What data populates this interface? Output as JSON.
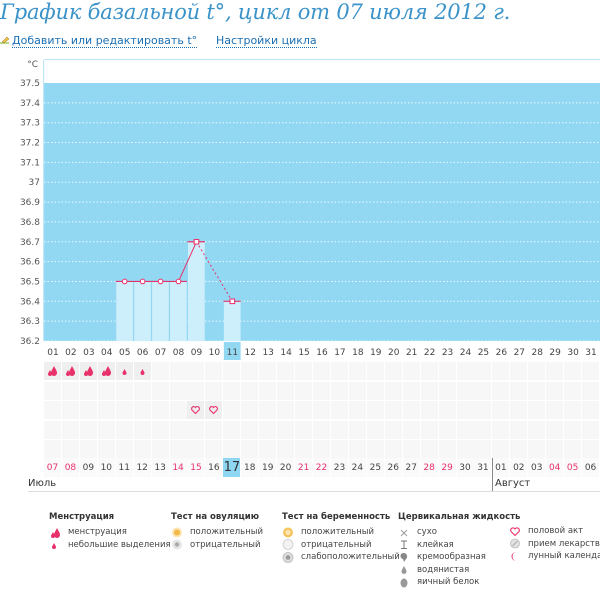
{
  "header": {
    "title": "График базальной t°, цикл от 07 июля 2012 г.",
    "links": [
      {
        "label": "Добавить или редактировать t°",
        "icon": "pencil-icon"
      },
      {
        "label": "Настройки цикла"
      }
    ]
  },
  "colors": {
    "plot_bg": "#92d8f3",
    "bar_fill": "#cdeefb",
    "line": "#e8306a",
    "title": "#3b93c9",
    "link": "#1a6fb3"
  },
  "chart_data": {
    "type": "bar",
    "title": "",
    "ylabel": "°C",
    "ylim": [
      36.2,
      37.5
    ],
    "yticks": [
      "37.5",
      "37.4",
      "37.3",
      "37.2",
      "37.1",
      "37",
      "36.9",
      "36.8",
      "36.7",
      "36.6",
      "36.5",
      "36.4",
      "36.3",
      "36.2"
    ],
    "ytick_values": [
      37.5,
      37.4,
      37.3,
      37.2,
      37.1,
      37.0,
      36.9,
      36.8,
      36.7,
      36.6,
      36.5,
      36.4,
      36.3,
      36.2
    ],
    "categories": [
      "01",
      "02",
      "03",
      "04",
      "05",
      "06",
      "07",
      "08",
      "09",
      "10",
      "11",
      "12",
      "13",
      "14",
      "15",
      "16",
      "17",
      "18",
      "19",
      "20",
      "21",
      "22",
      "23",
      "24",
      "25",
      "26",
      "27",
      "28",
      "29",
      "30",
      "31"
    ],
    "values": [
      null,
      null,
      null,
      null,
      36.5,
      36.5,
      36.5,
      36.5,
      36.7,
      null,
      36.4,
      null,
      null,
      null,
      null,
      null,
      null,
      null,
      null,
      null,
      null,
      null,
      null,
      null,
      null,
      null,
      null,
      null,
      null,
      null,
      null
    ],
    "markers": [
      "",
      "",
      "",
      "",
      "circle",
      "circle",
      "circle",
      "circle",
      "square",
      "",
      "square",
      "",
      "",
      "",
      "",
      "",
      "",
      "",
      "",
      "",
      "",
      "",
      "",
      "",
      "",
      "",
      "",
      "",
      "",
      "",
      ""
    ],
    "line_segments": [
      {
        "from": 5,
        "to": 8,
        "style": "solid"
      },
      {
        "from": 8,
        "to": 9,
        "style": "solid"
      },
      {
        "from": 9,
        "to": 11,
        "style": "dashed"
      }
    ],
    "current_day": "11",
    "grid": true
  },
  "events": {
    "menstruation": [
      "heavy",
      "heavy",
      "heavy",
      "heavy",
      "light",
      "light"
    ],
    "intercourse_days": [
      9,
      10
    ]
  },
  "calendar": {
    "dates": [
      {
        "d": "07",
        "red": true
      },
      {
        "d": "08",
        "red": true
      },
      {
        "d": "09"
      },
      {
        "d": "10"
      },
      {
        "d": "11"
      },
      {
        "d": "12"
      },
      {
        "d": "13"
      },
      {
        "d": "14",
        "red": true
      },
      {
        "d": "15",
        "red": true
      },
      {
        "d": "16"
      },
      {
        "d": "17",
        "today": true
      },
      {
        "d": "18"
      },
      {
        "d": "19"
      },
      {
        "d": "20"
      },
      {
        "d": "21",
        "red": true
      },
      {
        "d": "22",
        "red": true
      },
      {
        "d": "23"
      },
      {
        "d": "24"
      },
      {
        "d": "25"
      },
      {
        "d": "26"
      },
      {
        "d": "27"
      },
      {
        "d": "28",
        "red": true
      },
      {
        "d": "29",
        "red": true
      },
      {
        "d": "30"
      },
      {
        "d": "31"
      },
      {
        "d": "01"
      },
      {
        "d": "02"
      },
      {
        "d": "03"
      },
      {
        "d": "04",
        "red": true
      },
      {
        "d": "05",
        "red": true
      },
      {
        "d": "06"
      }
    ],
    "months": [
      "Июль",
      "Август"
    ]
  },
  "legend": {
    "menstruation": {
      "title": "Менструация",
      "items": [
        "менструация",
        "небольшие выделения"
      ]
    },
    "ovulation": {
      "title": "Тест на овуляцию",
      "items": [
        "положительный",
        "отрицательный"
      ]
    },
    "pregnancy": {
      "title": "Тест на беременность",
      "items": [
        "положительный",
        "отрицательный",
        "слабоположительный"
      ]
    },
    "cervical": {
      "title": "Цервикальная жидкость",
      "items": [
        "сухо",
        "клейкая",
        "кремообразная",
        "водянистая",
        "яичный белок"
      ]
    },
    "other": {
      "items": [
        "половой акт",
        "прием лекарств",
        "лунный календарь"
      ]
    }
  }
}
